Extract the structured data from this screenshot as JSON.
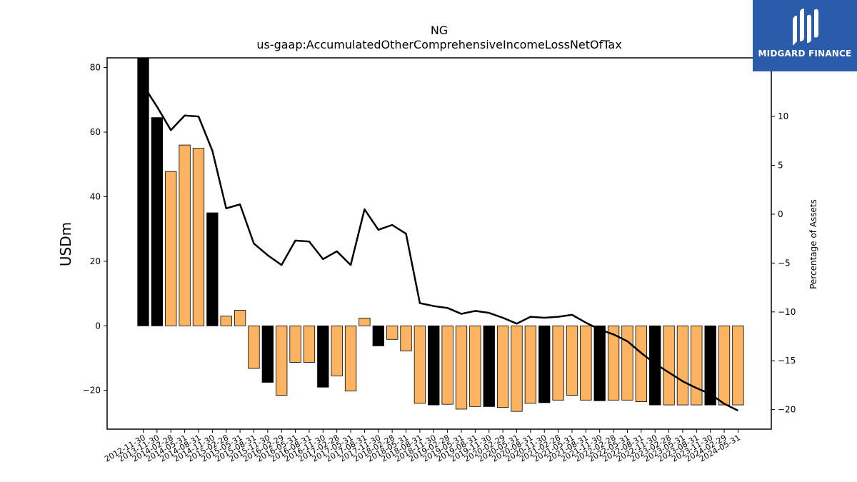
{
  "logo": {
    "name": "MIDGARD FINANCE",
    "background": "#2a5cab"
  },
  "chart_data": {
    "type": "bar+line",
    "title": "NG",
    "subtitle": "us-gaap:AccumulatedOtherComprehensiveIncomeLossNetOfTax",
    "ylabel": "USDm",
    "y2label": "Percentage of Assets",
    "ylim": [
      -32,
      83
    ],
    "y2lim": [
      -22,
      16
    ],
    "yticks": [
      -20,
      0,
      20,
      40,
      60,
      80
    ],
    "y2ticks": [
      -20,
      -15,
      -10,
      -5,
      0,
      5,
      10
    ],
    "categories": [
      "2012-11-30",
      "2013-11-30",
      "2014-02-28",
      "2014-05-31",
      "2014-08-31",
      "2014-11-30",
      "2015-02-28",
      "2015-05-31",
      "2015-08-31",
      "2015-11-30",
      "2016-02-29",
      "2016-05-31",
      "2016-08-31",
      "2016-11-30",
      "2017-02-28",
      "2017-05-31",
      "2017-08-31",
      "2017-11-30",
      "2018-02-28",
      "2018-05-31",
      "2018-08-31",
      "2018-11-30",
      "2019-02-28",
      "2019-05-31",
      "2019-08-31",
      "2019-11-30",
      "2020-02-29",
      "2020-05-31",
      "2020-08-31",
      "2020-11-30",
      "2021-02-28",
      "2021-05-31",
      "2021-08-31",
      "2021-11-30",
      "2022-02-28",
      "2022-05-31",
      "2022-08-31",
      "2022-11-30",
      "2023-02-28",
      "2023-05-31",
      "2023-08-31",
      "2023-11-30",
      "2024-02-29",
      "2024-05-31"
    ],
    "bars": [
      83,
      64.5,
      47.8,
      56,
      55,
      35,
      3,
      4.8,
      -13.2,
      -17.5,
      -21.5,
      -11.3,
      -11.3,
      -19,
      -15.5,
      -20.2,
      2.4,
      -6.2,
      -4.2,
      -7.8,
      -24,
      -24.5,
      -24.3,
      -25.8,
      -25,
      -25,
      -25.3,
      -26.5,
      -24,
      -23.8,
      -23,
      -21.5,
      -23,
      -23.2,
      -23,
      -23,
      -23.5,
      -24.5,
      -24.5,
      -24.5,
      -24.5,
      -24.5,
      -24.5,
      -24.5
    ],
    "bar_highlight": [
      true,
      true,
      false,
      false,
      false,
      true,
      false,
      false,
      false,
      true,
      false,
      false,
      false,
      true,
      false,
      false,
      false,
      true,
      false,
      false,
      false,
      true,
      false,
      false,
      false,
      true,
      false,
      false,
      false,
      true,
      false,
      false,
      false,
      true,
      false,
      false,
      false,
      true,
      false,
      false,
      false,
      true,
      false,
      false
    ],
    "line": [
      13.2,
      11,
      8.6,
      10.1,
      10,
      6.5,
      0.6,
      1,
      -3,
      -4.2,
      -5.2,
      -2.7,
      -2.8,
      -4.6,
      -3.8,
      -5.2,
      0.5,
      -1.6,
      -1.1,
      -2,
      -9.1,
      -9.4,
      -9.6,
      -10.2,
      -9.9,
      -10.1,
      -10.6,
      -11.2,
      -10.5,
      -10.6,
      -10.5,
      -10.3,
      -11.1,
      -11.8,
      -12.3,
      -13,
      -14.2,
      -15.3,
      -16.2,
      -17.1,
      -17.8,
      -18.4,
      -19.4,
      -20.1
    ],
    "colors": {
      "bar": "#fdb462",
      "bar_highlight": "#000000",
      "line": "#000000"
    }
  }
}
